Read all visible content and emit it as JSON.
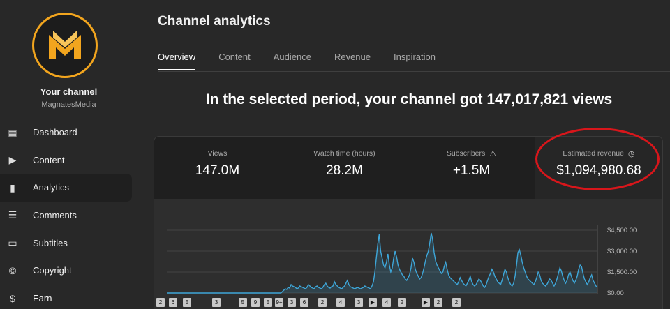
{
  "sidebar": {
    "channel_label": "Your channel",
    "channel_name": "MagnatesMedia",
    "items": [
      {
        "label": "Dashboard",
        "icon": "dashboard-icon",
        "glyph": "▦"
      },
      {
        "label": "Content",
        "icon": "content-icon",
        "glyph": "▶"
      },
      {
        "label": "Analytics",
        "icon": "analytics-icon",
        "glyph": "▮"
      },
      {
        "label": "Comments",
        "icon": "comments-icon",
        "glyph": "☰"
      },
      {
        "label": "Subtitles",
        "icon": "subtitles-icon",
        "glyph": "▭"
      },
      {
        "label": "Copyright",
        "icon": "copyright-icon",
        "glyph": "©"
      },
      {
        "label": "Earn",
        "icon": "earn-icon",
        "glyph": "$"
      }
    ],
    "active_index": 2
  },
  "main": {
    "title": "Channel analytics",
    "tabs": [
      "Overview",
      "Content",
      "Audience",
      "Revenue",
      "Inspiration"
    ],
    "active_tab": 0,
    "headline": "In the selected period, your channel got 147,017,821 views",
    "metrics": [
      {
        "label": "Views",
        "value": "147.0M",
        "icon": ""
      },
      {
        "label": "Watch time (hours)",
        "value": "28.2M",
        "icon": ""
      },
      {
        "label": "Subscribers",
        "value": "+1.5M",
        "icon": "warning-icon"
      },
      {
        "label": "Estimated revenue",
        "value": "$1,094,980.68",
        "icon": "clock-icon"
      }
    ]
  },
  "colors": {
    "accent": "#f2a51e",
    "line": "#3ea6d8",
    "annotation": "#d8161b"
  },
  "chart_data": {
    "type": "area",
    "y_ticks": [
      "$4,500.00",
      "$3,000.00",
      "$1,500.00",
      "$0.00"
    ],
    "ylim": [
      0,
      4500
    ],
    "grid": true,
    "series": [
      {
        "values": [
          0,
          0,
          0,
          0,
          0,
          0,
          0,
          0,
          0,
          0,
          0,
          0,
          0,
          0,
          0,
          0,
          0,
          0,
          0,
          0,
          0,
          0,
          0,
          0,
          0,
          0,
          0,
          0,
          0,
          0,
          0,
          0,
          0,
          0,
          0,
          0,
          0,
          0,
          0,
          0,
          0,
          0,
          0,
          0,
          0,
          0,
          0,
          0,
          0,
          0,
          0,
          0,
          0,
          0,
          0,
          0,
          0,
          0,
          0,
          0,
          0,
          0,
          0,
          0,
          0,
          0,
          0,
          0,
          0,
          0,
          0,
          0,
          0,
          0,
          0,
          0,
          0,
          0,
          0,
          0,
          100,
          200,
          300,
          250,
          400,
          350,
          600,
          500,
          450,
          400,
          300,
          350,
          500,
          450,
          400,
          350,
          300,
          400,
          600,
          500,
          400,
          350,
          300,
          450,
          500,
          400,
          350,
          300,
          400,
          600,
          700,
          500,
          400,
          350,
          450,
          500,
          800,
          600,
          500,
          400,
          350,
          300,
          400,
          500,
          700,
          900,
          600,
          450,
          400,
          350,
          300,
          350,
          400,
          350,
          300,
          350,
          400,
          500,
          450,
          400,
          350,
          300,
          500,
          800,
          1500,
          2500,
          3500,
          4200,
          3000,
          2500,
          2000,
          1800,
          2200,
          2800,
          2000,
          1500,
          1800,
          2500,
          3000,
          2600,
          2000,
          1700,
          1500,
          1300,
          1200,
          1000,
          900,
          1100,
          1300,
          1800,
          2500,
          2200,
          1700,
          1400,
          1200,
          1000,
          1100,
          1400,
          1800,
          2300,
          2700,
          3000,
          3600,
          4300,
          3800,
          2900,
          2300,
          2000,
          1800,
          1600,
          1400,
          1500,
          1900,
          2200,
          1700,
          1300,
          1100,
          1000,
          900,
          800,
          700,
          600,
          800,
          1100,
          900,
          700,
          600,
          500,
          700,
          900,
          1200,
          800,
          600,
          500,
          600,
          800,
          1000,
          900,
          700,
          500,
          400,
          600,
          900,
          1200,
          1400,
          1700,
          1500,
          1200,
          1000,
          800,
          700,
          600,
          900,
          1300,
          1700,
          1500,
          1100,
          800,
          600,
          500,
          700,
          1200,
          2000,
          2900,
          3100,
          2700,
          2200,
          1800,
          1500,
          1200,
          1000,
          900,
          800,
          700,
          600,
          800,
          1100,
          1500,
          1300,
          900,
          700,
          600,
          500,
          600,
          800,
          1000,
          900,
          700,
          500,
          700,
          1000,
          1400,
          1800,
          1600,
          1200,
          900,
          700,
          900,
          1300,
          1500,
          1200,
          900,
          700,
          900,
          1200,
          1700,
          2000,
          1900,
          1400,
          1000,
          800,
          600,
          800,
          1100,
          1300,
          900,
          700,
          500,
          400
        ]
      }
    ]
  },
  "markers": [
    {
      "label": "2",
      "glyph": ""
    },
    {
      "label": "6",
      "glyph": ""
    },
    {
      "label": "5",
      "glyph": ""
    },
    {
      "label": "3",
      "glyph": ""
    },
    {
      "label": "5",
      "glyph": ""
    },
    {
      "label": "9",
      "glyph": ""
    },
    {
      "label": "5",
      "glyph": ""
    },
    {
      "label": "9+",
      "glyph": ""
    },
    {
      "label": "3",
      "glyph": ""
    },
    {
      "label": "6",
      "glyph": ""
    },
    {
      "label": "2",
      "glyph": ""
    },
    {
      "label": "4",
      "glyph": ""
    },
    {
      "label": "3",
      "glyph": ""
    },
    {
      "label": "",
      "glyph": "▶"
    },
    {
      "label": "4",
      "glyph": ""
    },
    {
      "label": "2",
      "glyph": ""
    },
    {
      "label": "",
      "glyph": "▶"
    },
    {
      "label": "2",
      "glyph": ""
    },
    {
      "label": "2",
      "glyph": ""
    }
  ]
}
